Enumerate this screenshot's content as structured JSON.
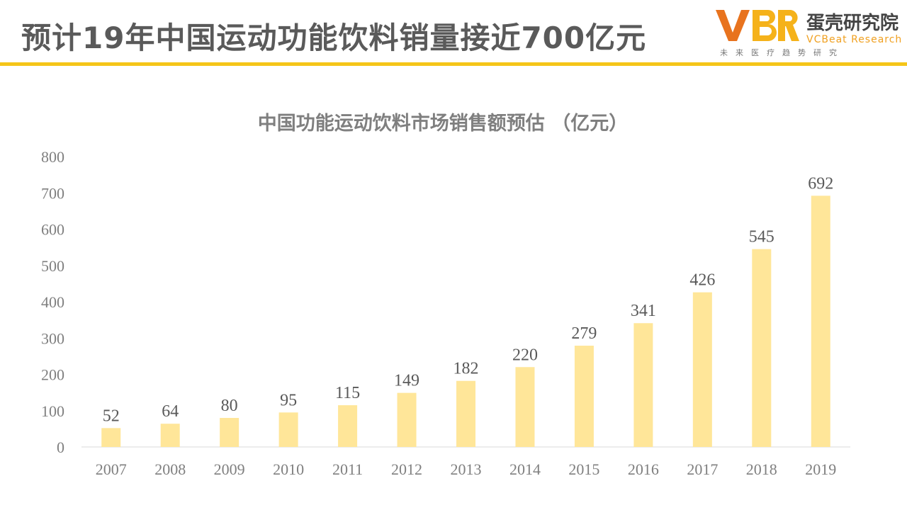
{
  "header": {
    "title": "预计19年中国运动功能饮料销量接近700亿元",
    "accent_color": "#f5c518"
  },
  "logo": {
    "mark_text": "VBR",
    "name_cn": "蛋壳研究院",
    "name_en": "VCBeat Research",
    "slogan": "未来医疗趋势研究",
    "colors": {
      "orange": "#e8731e",
      "gold": "#f5b21a",
      "text": "#444444"
    }
  },
  "chart_data": {
    "type": "bar",
    "title": "中国功能运动饮料市场销售额预估 （亿元）",
    "categories": [
      "2007",
      "2008",
      "2009",
      "2010",
      "2011",
      "2012",
      "2013",
      "2014",
      "2015",
      "2016",
      "2017",
      "2018",
      "2019"
    ],
    "values": [
      52,
      64,
      80,
      95,
      115,
      149,
      182,
      220,
      279,
      341,
      426,
      545,
      692
    ],
    "ylim": [
      0,
      800
    ],
    "yticks": [
      0,
      100,
      200,
      300,
      400,
      500,
      600,
      700,
      800
    ],
    "grid": false,
    "data_labels": true,
    "bar_color": "#ffe699"
  }
}
